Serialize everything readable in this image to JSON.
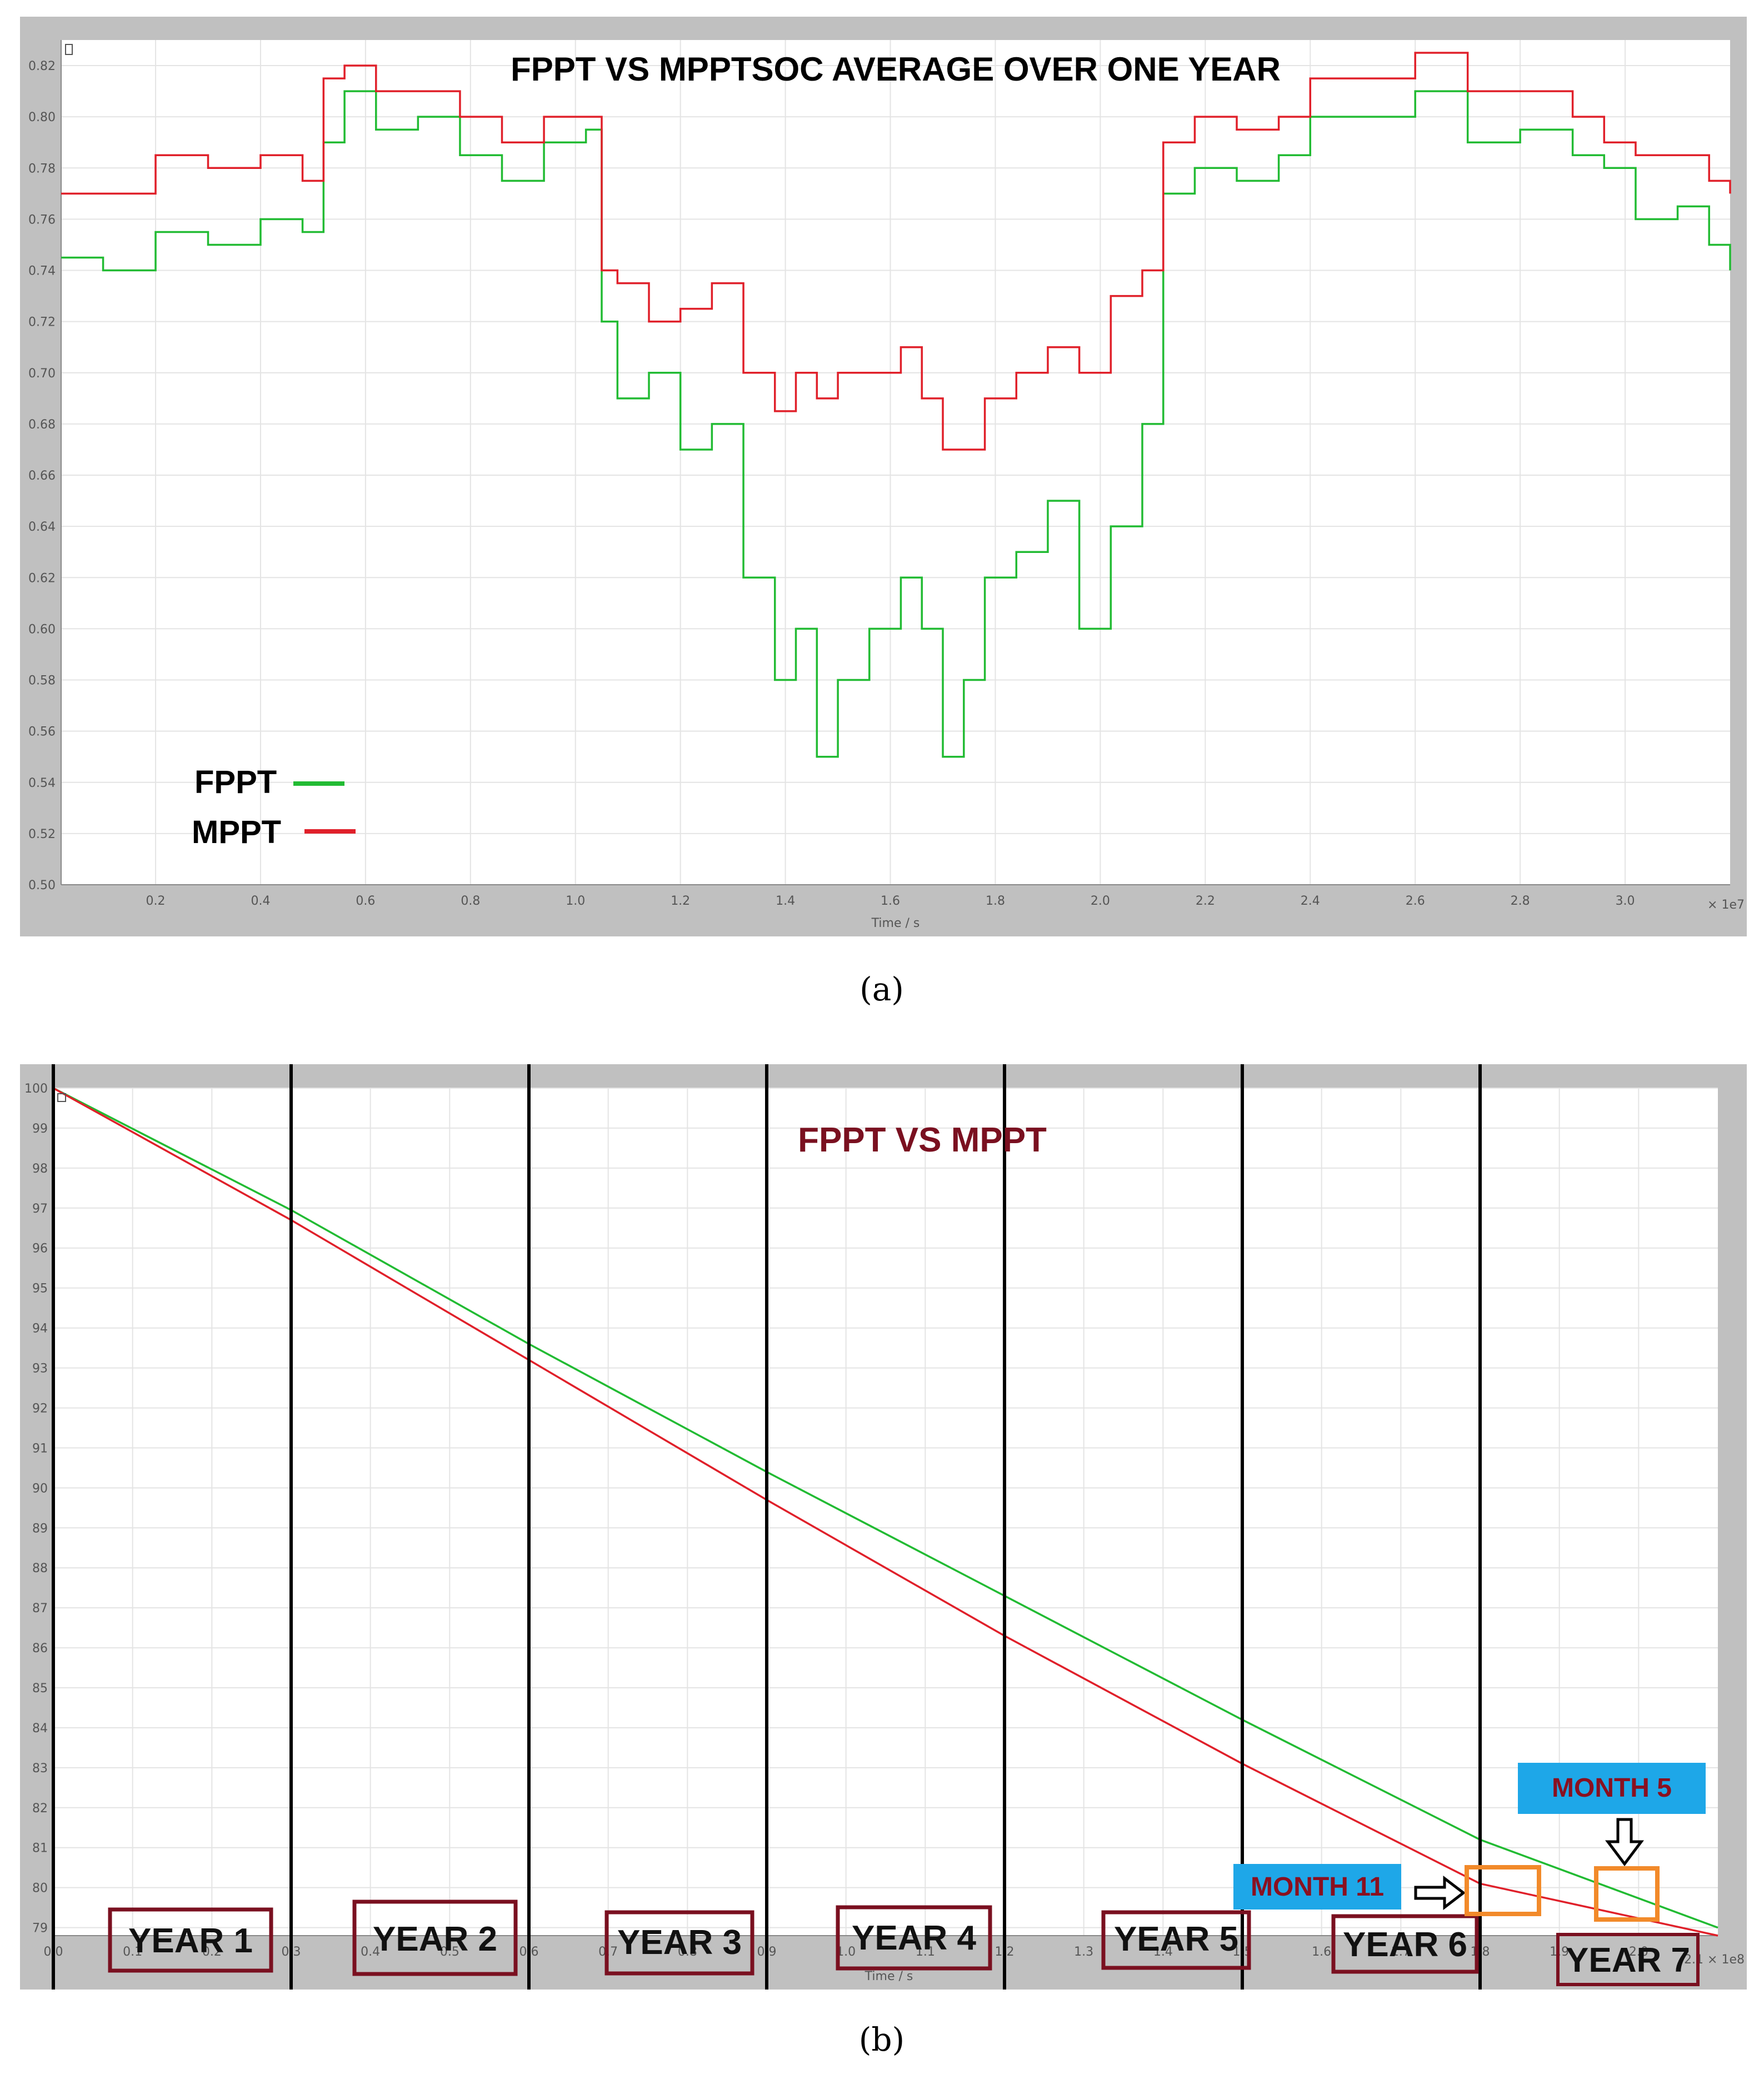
{
  "colors": {
    "fppt": "#22bb33",
    "mppt": "#e0202a",
    "frame": "#c0c0c0",
    "grid": "#e6e6e6",
    "year_box": "#7a1020",
    "month_fill": "#1ea7e8",
    "highlight": "#f28a2a"
  },
  "panel_a": {
    "caption": "(a)",
    "chart_data": {
      "type": "line",
      "title": "FPPT VS MPPTSOC AVERAGE OVER ONE YEAR",
      "xlabel": "Time / s",
      "x_multiplier": "× 1e7",
      "xlim": [
        0.02,
        3.2
      ],
      "ylim": [
        0.5,
        0.83
      ],
      "x_ticks": [
        0.2,
        0.4,
        0.6,
        0.8,
        1.0,
        1.2,
        1.4,
        1.6,
        1.8,
        2.0,
        2.2,
        2.4,
        2.6,
        2.8,
        3.0
      ],
      "x_tick_labels": [
        "0.2",
        "0.4",
        "0.6",
        "0.8",
        "1.0",
        "1.2",
        "1.4",
        "1.6",
        "1.8",
        "2.0",
        "2.2",
        "2.4",
        "2.6",
        "2.8",
        "3.0"
      ],
      "y_ticks": [
        0.5,
        0.52,
        0.54,
        0.56,
        0.58,
        0.6,
        0.62,
        0.64,
        0.66,
        0.68,
        0.7,
        0.72,
        0.74,
        0.76,
        0.78,
        0.8,
        0.82
      ],
      "y_tick_labels": [
        "0.50",
        "0.52",
        "0.54",
        "0.56",
        "0.58",
        "0.60",
        "0.62",
        "0.64",
        "0.66",
        "0.68",
        "0.70",
        "0.72",
        "0.74",
        "0.76",
        "0.78",
        "0.80",
        "0.82"
      ],
      "grid": true,
      "legend_position": "bottom-left",
      "series": [
        {
          "name": "FPPT",
          "x": [
            0.02,
            0.1,
            0.2,
            0.3,
            0.4,
            0.48,
            0.52,
            0.56,
            0.62,
            0.7,
            0.78,
            0.86,
            0.94,
            1.02,
            1.05,
            1.08,
            1.14,
            1.2,
            1.26,
            1.32,
            1.38,
            1.42,
            1.46,
            1.5,
            1.56,
            1.62,
            1.66,
            1.7,
            1.74,
            1.78,
            1.84,
            1.9,
            1.96,
            2.02,
            2.08,
            2.12,
            2.18,
            2.26,
            2.34,
            2.4,
            2.5,
            2.6,
            2.7,
            2.8,
            2.9,
            2.96,
            3.02,
            3.1,
            3.16,
            3.2
          ],
          "y": [
            0.745,
            0.74,
            0.755,
            0.75,
            0.76,
            0.755,
            0.79,
            0.81,
            0.795,
            0.8,
            0.785,
            0.775,
            0.79,
            0.795,
            0.72,
            0.69,
            0.7,
            0.67,
            0.68,
            0.62,
            0.58,
            0.6,
            0.55,
            0.58,
            0.6,
            0.62,
            0.6,
            0.55,
            0.58,
            0.62,
            0.63,
            0.65,
            0.6,
            0.64,
            0.68,
            0.77,
            0.78,
            0.775,
            0.785,
            0.8,
            0.8,
            0.81,
            0.79,
            0.795,
            0.785,
            0.78,
            0.76,
            0.765,
            0.75,
            0.74
          ]
        },
        {
          "name": "MPPT",
          "x": [
            0.02,
            0.1,
            0.2,
            0.3,
            0.4,
            0.48,
            0.52,
            0.56,
            0.62,
            0.7,
            0.78,
            0.86,
            0.94,
            1.02,
            1.05,
            1.08,
            1.14,
            1.2,
            1.26,
            1.32,
            1.38,
            1.42,
            1.46,
            1.5,
            1.56,
            1.62,
            1.66,
            1.7,
            1.74,
            1.78,
            1.84,
            1.9,
            1.96,
            2.02,
            2.08,
            2.12,
            2.18,
            2.26,
            2.34,
            2.4,
            2.5,
            2.6,
            2.7,
            2.8,
            2.9,
            2.96,
            3.02,
            3.1,
            3.16,
            3.2
          ],
          "y": [
            0.77,
            0.77,
            0.785,
            0.78,
            0.785,
            0.775,
            0.815,
            0.82,
            0.81,
            0.81,
            0.8,
            0.79,
            0.8,
            0.8,
            0.74,
            0.735,
            0.72,
            0.725,
            0.735,
            0.7,
            0.685,
            0.7,
            0.69,
            0.7,
            0.7,
            0.71,
            0.69,
            0.67,
            0.67,
            0.69,
            0.7,
            0.71,
            0.7,
            0.73,
            0.74,
            0.79,
            0.8,
            0.795,
            0.8,
            0.815,
            0.815,
            0.825,
            0.81,
            0.81,
            0.8,
            0.79,
            0.785,
            0.785,
            0.775,
            0.77
          ]
        }
      ]
    },
    "legend": [
      {
        "label": "FPPT",
        "color": "#22bb33"
      },
      {
        "label": "MPPT",
        "color": "#e0202a"
      }
    ]
  },
  "panel_b": {
    "caption": "(b)",
    "chart_data": {
      "type": "line",
      "title": "FPPT VS MPPT",
      "xlabel": "Time / s",
      "x_multiplier": "2.1 × 1e8",
      "xlim": [
        0.0,
        2.1
      ],
      "ylim": [
        78.8,
        100.0
      ],
      "x_ticks": [
        0.0,
        0.1,
        0.2,
        0.3,
        0.4,
        0.5,
        0.6,
        0.7,
        0.8,
        0.9,
        1.0,
        1.1,
        1.2,
        1.3,
        1.4,
        1.5,
        1.6,
        1.7,
        1.8,
        1.9,
        2.0
      ],
      "x_tick_labels": [
        "0.0",
        "0.1",
        "0.2",
        "0.3",
        "0.4",
        "0.5",
        "0.6",
        "0.7",
        "0.8",
        "0.9",
        "1.0",
        "1.1",
        "1.2",
        "1.3",
        "1.4",
        "1.5",
        "1.6",
        "1.7",
        "1.8",
        "1.9",
        "2.0"
      ],
      "y_ticks": [
        79,
        80,
        81,
        82,
        83,
        84,
        85,
        86,
        87,
        88,
        89,
        90,
        91,
        92,
        93,
        94,
        95,
        96,
        97,
        98,
        99,
        100
      ],
      "y_tick_labels": [
        "79",
        "80",
        "81",
        "82",
        "83",
        "84",
        "85",
        "86",
        "87",
        "88",
        "89",
        "90",
        "91",
        "92",
        "93",
        "94",
        "95",
        "96",
        "97",
        "98",
        "99",
        "100"
      ],
      "grid": true,
      "series": [
        {
          "name": "FPPT",
          "x": [
            0.0,
            0.3,
            0.6,
            0.9,
            1.2,
            1.5,
            1.8,
            2.1
          ],
          "y": [
            100.0,
            96.95,
            93.6,
            90.4,
            87.3,
            84.2,
            81.2,
            79.0
          ]
        },
        {
          "name": "MPPT",
          "x": [
            0.0,
            0.3,
            0.6,
            0.9,
            1.2,
            1.5,
            1.8,
            2.1
          ],
          "y": [
            100.0,
            96.7,
            93.2,
            89.7,
            86.3,
            83.1,
            80.1,
            78.8
          ]
        }
      ]
    },
    "year_labels": [
      "YEAR 1",
      "YEAR 2",
      "YEAR 3",
      "YEAR 4",
      "YEAR 5",
      "YEAR 6",
      "YEAR 7"
    ],
    "month_labels": [
      "MONTH 11",
      "MONTH 5"
    ]
  }
}
